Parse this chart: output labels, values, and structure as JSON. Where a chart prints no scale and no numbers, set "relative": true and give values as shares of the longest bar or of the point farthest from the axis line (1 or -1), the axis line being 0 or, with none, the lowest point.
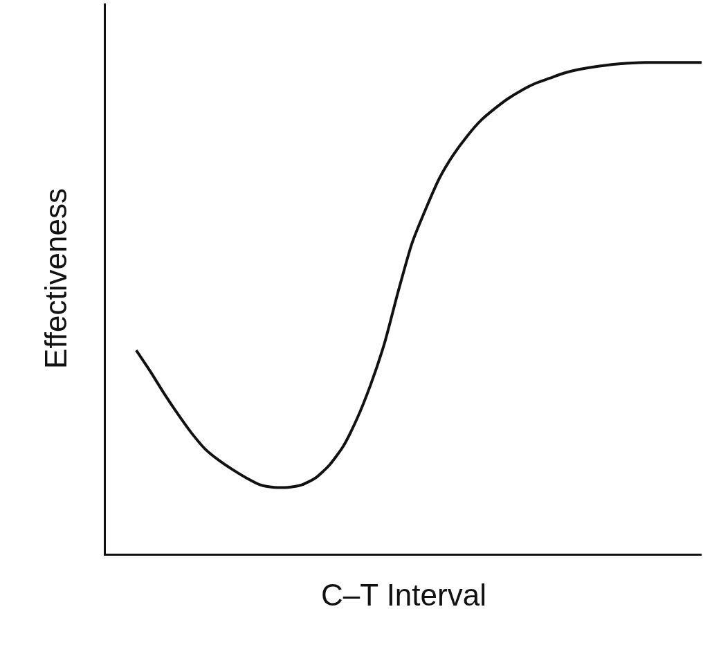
{
  "chart_data": {
    "type": "line",
    "relative": true,
    "xlabel": "C–T Interval",
    "ylabel": "Effectiveness",
    "categories": [
      null,
      null,
      null,
      null,
      null,
      null,
      null,
      null,
      null,
      null,
      null,
      null,
      null,
      null,
      null,
      null,
      null,
      null,
      null,
      null,
      null,
      null,
      null,
      null,
      null,
      null,
      null,
      null,
      null,
      null,
      null,
      null,
      null,
      null,
      null,
      null,
      null,
      null,
      null,
      null,
      null,
      null
    ],
    "series": [
      {
        "color": "#111111",
        "values": [
          0.414,
          0.372,
          0.327,
          0.285,
          0.246,
          0.213,
          0.19,
          0.171,
          0.154,
          0.14,
          0.135,
          0.135,
          0.14,
          0.154,
          0.18,
          0.218,
          0.274,
          0.344,
          0.428,
          0.534,
          0.632,
          0.702,
          0.765,
          0.812,
          0.85,
          0.882,
          0.906,
          0.927,
          0.944,
          0.958,
          0.968,
          0.978,
          0.985,
          0.99,
          0.994,
          0.997,
          0.999,
          1,
          1,
          1,
          1,
          1
        ]
      }
    ],
    "marker": "none",
    "line_style": "solid"
  }
}
